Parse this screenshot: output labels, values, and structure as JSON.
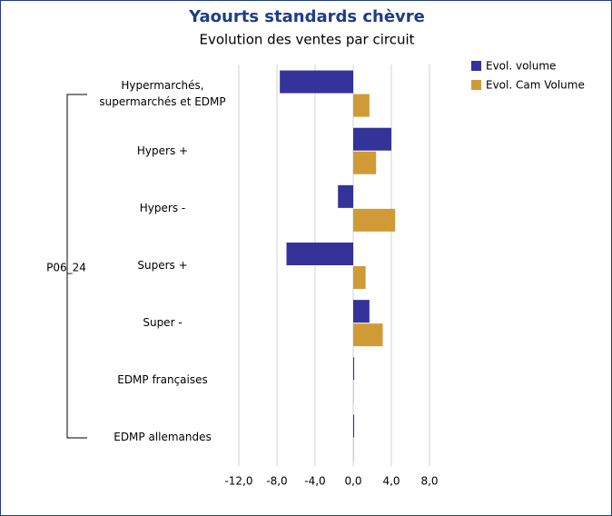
{
  "chart_data": {
    "type": "hbar",
    "title": "Yaourts standards chèvre",
    "subtitle": "Evolution des ventes par circuit",
    "group_label": "P06_24",
    "categories": [
      "Hypermarchés, supermarchés et EDMP",
      "Hypers +",
      "Hypers -",
      "Supers +",
      "Super -",
      "EDMP françaises",
      "EDMP allemandes"
    ],
    "series": [
      {
        "name": "Evol. volume",
        "color": "#333399",
        "values": [
          -7.7,
          4.0,
          -1.6,
          -7.0,
          1.7,
          0.1,
          0.1
        ]
      },
      {
        "name": "Evol. Cam Volume",
        "color": "#d09b36",
        "values": [
          1.7,
          2.4,
          4.4,
          1.3,
          3.1,
          0.05,
          0.05
        ]
      }
    ],
    "xlim": [
      -12,
      8
    ],
    "xticks": [
      {
        "value": -12,
        "label": "-12,0"
      },
      {
        "value": -8,
        "label": "-8,0"
      },
      {
        "value": -4,
        "label": "-4,0"
      },
      {
        "value": 0,
        "label": "0,0"
      },
      {
        "value": 4,
        "label": "4,0"
      },
      {
        "value": 8,
        "label": "8,0"
      }
    ],
    "grid": true
  }
}
